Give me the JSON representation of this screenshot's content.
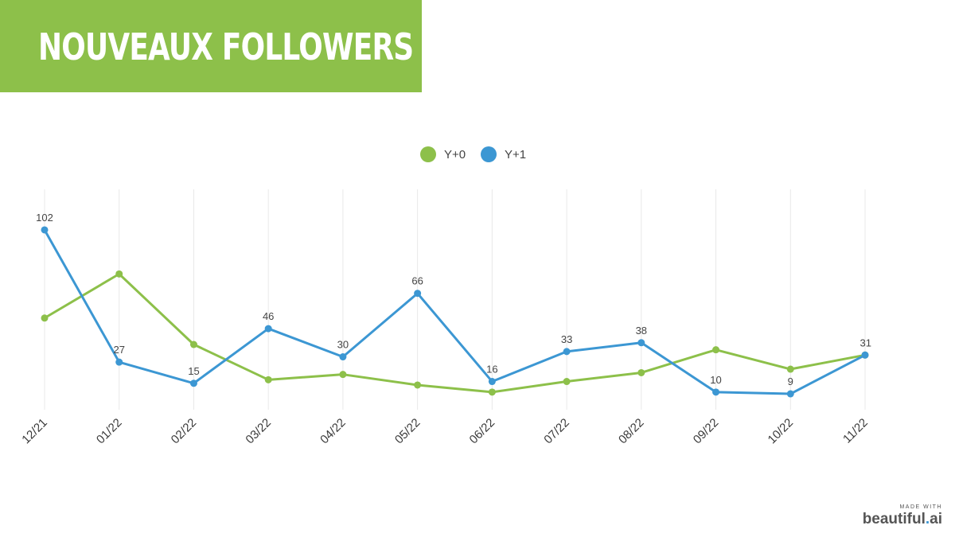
{
  "title": "NOUVEAUX FOLLOWERS",
  "colors": {
    "banner": "#8dc04a",
    "y0": "#8dc04a",
    "y1": "#3c97d3",
    "grid": "#e8e8e8"
  },
  "watermark": {
    "made_with": "MADE WITH",
    "brand": "beautiful",
    "dot": ".",
    "suffix": "ai"
  },
  "chart_data": {
    "type": "line",
    "title": "NOUVEAUX FOLLOWERS",
    "xlabel": "",
    "ylabel": "",
    "categories": [
      "12/21",
      "01/22",
      "02/22",
      "03/22",
      "04/22",
      "05/22",
      "06/22",
      "07/22",
      "08/22",
      "09/22",
      "10/22",
      "11/22"
    ],
    "series": [
      {
        "name": "Y+0",
        "color": "#8dc04a",
        "values": [
          52,
          77,
          37,
          17,
          20,
          14,
          10,
          16,
          21,
          34,
          23,
          31
        ],
        "show_labels": false
      },
      {
        "name": "Y+1",
        "color": "#3c97d3",
        "values": [
          102,
          27,
          15,
          46,
          30,
          66,
          16,
          33,
          38,
          10,
          9,
          31
        ],
        "show_labels": true
      }
    ],
    "ylim": [
      0,
      125
    ],
    "grid": "vertical",
    "legend": "top-center"
  }
}
